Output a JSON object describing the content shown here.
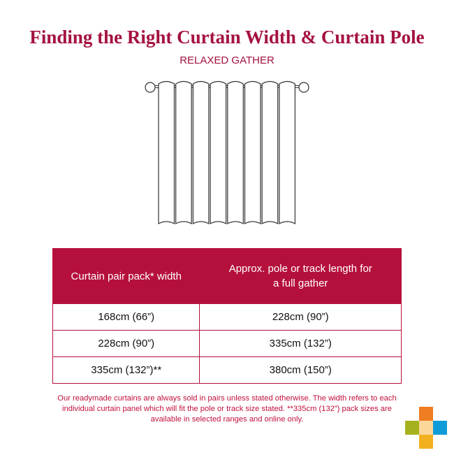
{
  "title": "Finding the Right Curtain Width & Curtain Pole",
  "subtitle": "RELAXED GATHER",
  "table": {
    "headers": [
      "Curtain pair pack* width",
      "Approx. pole or track length for a full gather"
    ],
    "rows": [
      [
        "168cm (66”)",
        "228cm (90”)"
      ],
      [
        "228cm (90”)",
        "335cm (132”)"
      ],
      [
        "335cm (132”)**",
        "380cm (150”)"
      ]
    ]
  },
  "note": "Our readymade curtains are always sold in pairs unless stated otherwise. The width refers to each individual curtain panel which will fit the pole or track size stated. **335cm (132”) pack sizes are available in selected ranges and online only.",
  "colors": {
    "accent": "#b5103c",
    "logo": [
      "#ef7d22",
      "#a5b21e",
      "#fbd89a",
      "#0f9bd7",
      "#f2b01e"
    ]
  }
}
